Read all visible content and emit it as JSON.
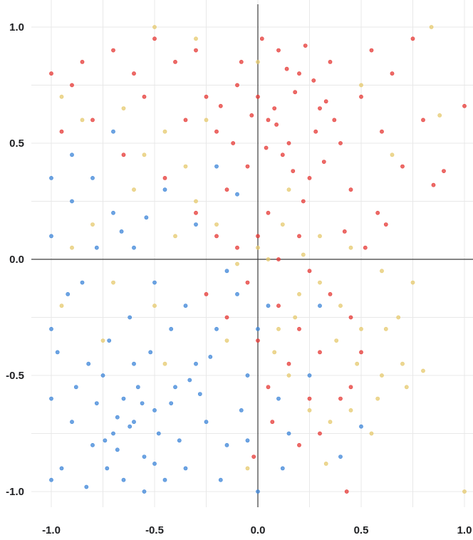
{
  "chart_data": {
    "type": "scatter",
    "title": "",
    "xlabel": "",
    "ylabel": "",
    "xlim": [
      -1.0,
      1.0
    ],
    "ylim": [
      -1.0,
      1.0
    ],
    "grid": true,
    "x_ticks": [
      "-1.0",
      "-0.5",
      "0.0",
      "0.5",
      "1.0"
    ],
    "y_ticks": [
      "1.0",
      "0.5",
      "0.0",
      "-0.5",
      "-1.0"
    ],
    "colors": {
      "red": "#e53935",
      "blue": "#3d85d8",
      "yellow": "#e6c96e"
    },
    "series": [
      {
        "color": "#e53935",
        "points": [
          [
            0.05,
            0.6
          ],
          [
            -0.1,
            0.75
          ],
          [
            0.2,
            0.8
          ],
          [
            0.15,
            0.5
          ],
          [
            -0.05,
            0.4
          ],
          [
            0.3,
            0.65
          ],
          [
            0.1,
            0.9
          ],
          [
            -0.2,
            0.55
          ],
          [
            0.25,
            0.35
          ],
          [
            0.0,
            0.7
          ],
          [
            0.35,
            0.85
          ],
          [
            0.4,
            0.5
          ],
          [
            -0.3,
            0.9
          ],
          [
            -0.15,
            0.3
          ],
          [
            0.05,
            0.2
          ],
          [
            0.2,
            0.1
          ],
          [
            0.45,
            0.3
          ],
          [
            0.5,
            0.7
          ],
          [
            -0.35,
            0.6
          ],
          [
            -0.4,
            0.85
          ],
          [
            0.08,
            0.65
          ],
          [
            0.12,
            0.45
          ],
          [
            -0.08,
            0.85
          ],
          [
            0.18,
            0.72
          ],
          [
            0.28,
            0.55
          ],
          [
            -0.25,
            0.7
          ],
          [
            0.02,
            0.95
          ],
          [
            0.32,
            0.42
          ],
          [
            0.22,
            0.25
          ],
          [
            -0.12,
            0.5
          ],
          [
            0.55,
            0.9
          ],
          [
            0.6,
            0.55
          ],
          [
            0.65,
            0.8
          ],
          [
            0.7,
            0.4
          ],
          [
            0.75,
            0.95
          ],
          [
            0.85,
            0.32
          ],
          [
            0.9,
            0.38
          ],
          [
            1.0,
            0.66
          ],
          [
            0.8,
            0.6
          ],
          [
            0.58,
            0.2
          ],
          [
            -0.5,
            0.95
          ],
          [
            -0.6,
            0.8
          ],
          [
            -0.7,
            0.9
          ],
          [
            -0.85,
            0.85
          ],
          [
            -0.9,
            0.75
          ],
          [
            -0.95,
            0.55
          ],
          [
            -1.0,
            0.8
          ],
          [
            -0.8,
            0.6
          ],
          [
            -0.65,
            0.45
          ],
          [
            -0.55,
            0.7
          ],
          [
            -0.45,
            0.35
          ],
          [
            -0.3,
            0.2
          ],
          [
            -0.2,
            0.1
          ],
          [
            -0.1,
            0.05
          ],
          [
            0.0,
            0.1
          ],
          [
            0.1,
            0.0
          ],
          [
            0.25,
            -0.05
          ],
          [
            0.35,
            -0.15
          ],
          [
            0.45,
            -0.25
          ],
          [
            0.3,
            -0.4
          ],
          [
            0.2,
            -0.3
          ],
          [
            0.1,
            -0.2
          ],
          [
            0.05,
            -0.55
          ],
          [
            0.15,
            -0.45
          ],
          [
            0.25,
            -0.6
          ],
          [
            0.5,
            -0.4
          ],
          [
            0.4,
            -0.6
          ],
          [
            0.3,
            -0.75
          ],
          [
            0.45,
            -0.55
          ],
          [
            0.2,
            -0.8
          ],
          [
            -0.05,
            -0.1
          ],
          [
            -0.15,
            -0.25
          ],
          [
            -0.25,
            -0.15
          ],
          [
            0.0,
            -0.35
          ],
          [
            0.07,
            -0.7
          ],
          [
            -0.02,
            -0.85
          ],
          [
            0.43,
            -1.0
          ],
          [
            0.52,
            0.05
          ],
          [
            0.62,
            0.15
          ],
          [
            0.42,
            0.12
          ],
          [
            0.14,
            0.82
          ],
          [
            0.09,
            0.58
          ],
          [
            0.27,
            0.77
          ],
          [
            0.33,
            0.68
          ],
          [
            -0.03,
            0.62
          ],
          [
            0.17,
            0.38
          ],
          [
            0.37,
            0.6
          ],
          [
            0.04,
            0.48
          ],
          [
            -0.18,
            0.66
          ],
          [
            0.23,
            0.92
          ]
        ]
      },
      {
        "color": "#3d85d8",
        "points": [
          [
            -0.6,
            -0.7
          ],
          [
            -0.7,
            -0.75
          ],
          [
            -0.5,
            -0.65
          ],
          [
            -0.8,
            -0.8
          ],
          [
            -0.55,
            -0.85
          ],
          [
            -0.65,
            -0.6
          ],
          [
            -0.75,
            -0.5
          ],
          [
            -0.9,
            -0.7
          ],
          [
            -0.95,
            -0.9
          ],
          [
            -1.0,
            -0.3
          ],
          [
            -1.0,
            -0.6
          ],
          [
            -1.0,
            0.1
          ],
          [
            -1.0,
            -0.95
          ],
          [
            -0.4,
            -0.55
          ],
          [
            -0.3,
            -0.45
          ],
          [
            -0.2,
            -0.3
          ],
          [
            -0.35,
            -0.2
          ],
          [
            -0.5,
            -0.1
          ],
          [
            -0.6,
            0.05
          ],
          [
            -0.7,
            0.2
          ],
          [
            -0.85,
            -0.1
          ],
          [
            -0.9,
            0.25
          ],
          [
            -0.45,
            0.3
          ],
          [
            -0.3,
            0.15
          ],
          [
            -0.15,
            -0.05
          ],
          [
            -0.1,
            -0.15
          ],
          [
            0.0,
            -0.3
          ],
          [
            -0.05,
            -0.5
          ],
          [
            0.1,
            -0.6
          ],
          [
            0.15,
            -0.75
          ],
          [
            -0.25,
            -0.7
          ],
          [
            -0.15,
            -0.8
          ],
          [
            -0.35,
            -0.9
          ],
          [
            -0.45,
            -0.95
          ],
          [
            -0.55,
            -1.0
          ],
          [
            -0.65,
            -0.95
          ],
          [
            -0.78,
            -0.62
          ],
          [
            -0.68,
            -0.82
          ],
          [
            -0.58,
            -0.55
          ],
          [
            -0.48,
            -0.75
          ],
          [
            -0.82,
            -0.45
          ],
          [
            -0.72,
            -0.35
          ],
          [
            -0.62,
            -0.25
          ],
          [
            -0.52,
            -0.4
          ],
          [
            -0.42,
            -0.3
          ],
          [
            -0.88,
            -0.55
          ],
          [
            -0.92,
            -0.15
          ],
          [
            -0.97,
            -0.4
          ],
          [
            -0.78,
            0.05
          ],
          [
            -0.66,
            0.12
          ],
          [
            -0.54,
            0.18
          ],
          [
            -0.2,
            0.4
          ],
          [
            -0.1,
            0.28
          ],
          [
            0.0,
            -1.0
          ],
          [
            0.05,
            -0.2
          ],
          [
            -0.08,
            -0.65
          ],
          [
            0.12,
            -0.9
          ],
          [
            -0.28,
            -0.58
          ],
          [
            -0.38,
            -0.78
          ],
          [
            -0.6,
            -0.45
          ],
          [
            -0.73,
            -0.9
          ],
          [
            -0.83,
            -0.98
          ],
          [
            -0.5,
            -0.88
          ],
          [
            -0.42,
            -0.62
          ],
          [
            -0.33,
            -0.52
          ],
          [
            -0.23,
            -0.42
          ],
          [
            -0.9,
            0.45
          ],
          [
            -0.8,
            0.35
          ],
          [
            -0.7,
            0.55
          ],
          [
            -1.0,
            0.35
          ],
          [
            0.4,
            -0.85
          ],
          [
            0.5,
            -0.72
          ],
          [
            0.25,
            -0.5
          ],
          [
            0.3,
            -0.2
          ],
          [
            -0.18,
            -0.95
          ],
          [
            -0.05,
            -0.78
          ],
          [
            -0.62,
            -0.72
          ],
          [
            -0.56,
            -0.62
          ],
          [
            -0.68,
            -0.68
          ],
          [
            -0.74,
            -0.78
          ]
        ]
      },
      {
        "color": "#e6c96e",
        "points": [
          [
            0.2,
            -0.15
          ],
          [
            0.3,
            -0.1
          ],
          [
            0.4,
            -0.2
          ],
          [
            0.5,
            -0.3
          ],
          [
            0.6,
            -0.5
          ],
          [
            0.7,
            -0.45
          ],
          [
            0.8,
            -0.48
          ],
          [
            0.55,
            -0.75
          ],
          [
            0.45,
            -0.65
          ],
          [
            0.35,
            -0.7
          ],
          [
            0.25,
            -0.65
          ],
          [
            0.15,
            -0.5
          ],
          [
            0.1,
            -0.3
          ],
          [
            0.05,
            0.0
          ],
          [
            0.0,
            0.05
          ],
          [
            -0.1,
            -0.02
          ],
          [
            -0.2,
            0.15
          ],
          [
            -0.3,
            0.25
          ],
          [
            -0.4,
            0.1
          ],
          [
            -0.5,
            -0.2
          ],
          [
            -0.6,
            0.3
          ],
          [
            -0.7,
            -0.1
          ],
          [
            -0.8,
            0.15
          ],
          [
            -0.9,
            0.05
          ],
          [
            -0.95,
            -0.2
          ],
          [
            -0.75,
            -0.35
          ],
          [
            -0.55,
            0.45
          ],
          [
            -0.65,
            0.65
          ],
          [
            -0.85,
            0.6
          ],
          [
            -0.95,
            0.7
          ],
          [
            -0.5,
            1.0
          ],
          [
            -0.3,
            0.95
          ],
          [
            0.0,
            0.85
          ],
          [
            0.15,
            0.3
          ],
          [
            0.3,
            0.1
          ],
          [
            0.45,
            0.05
          ],
          [
            0.6,
            -0.05
          ],
          [
            0.75,
            -0.1
          ],
          [
            0.62,
            -0.3
          ],
          [
            0.72,
            -0.55
          ],
          [
            0.84,
            1.0
          ],
          [
            0.88,
            0.62
          ],
          [
            1.0,
            -1.0
          ],
          [
            0.33,
            -0.88
          ],
          [
            -0.05,
            -0.9
          ],
          [
            -0.35,
            0.4
          ],
          [
            -0.45,
            0.55
          ],
          [
            -0.25,
            0.6
          ],
          [
            0.5,
            0.75
          ],
          [
            0.65,
            0.45
          ],
          [
            0.12,
            0.15
          ],
          [
            0.22,
            0.02
          ],
          [
            0.38,
            -0.35
          ],
          [
            0.48,
            -0.45
          ],
          [
            0.58,
            -0.6
          ],
          [
            0.68,
            -0.25
          ],
          [
            0.18,
            -0.25
          ],
          [
            0.08,
            -0.4
          ],
          [
            -0.15,
            -0.35
          ],
          [
            -0.45,
            -0.45
          ]
        ]
      }
    ]
  }
}
